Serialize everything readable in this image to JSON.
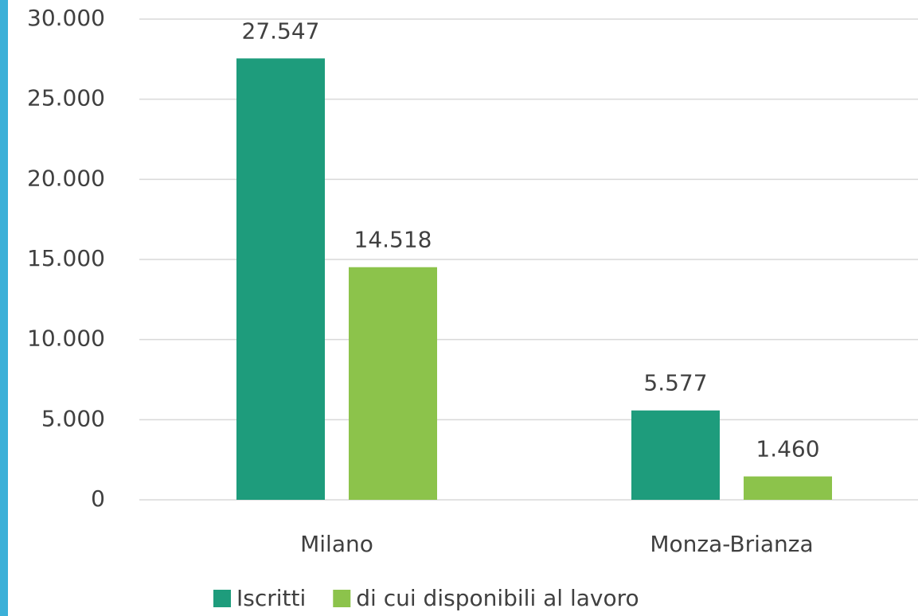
{
  "chart_data": {
    "type": "bar",
    "categories": [
      "Milano",
      "Monza-Brianza"
    ],
    "series": [
      {
        "name": "Iscritti",
        "color": "#1e9c7c",
        "values": [
          27547,
          5577
        ],
        "value_labels": [
          "27.547",
          "5.577"
        ]
      },
      {
        "name": "di cui disponibili al lavoro",
        "color": "#8cc34b",
        "values": [
          14518,
          1460
        ],
        "value_labels": [
          "14.518",
          "1.460"
        ]
      }
    ],
    "ylim": [
      0,
      30000
    ],
    "yticks": [
      0,
      {
        "value": 5000,
        "label": "5.000"
      },
      {
        "value": 10000,
        "label": "10.000"
      },
      {
        "value": 15000,
        "label": "15.000"
      },
      {
        "value": 20000,
        "label": "20.000"
      },
      {
        "value": 25000,
        "label": "25.000"
      },
      {
        "value": 30000,
        "label": "30.000"
      }
    ],
    "grid": true,
    "legend": "bottom"
  }
}
